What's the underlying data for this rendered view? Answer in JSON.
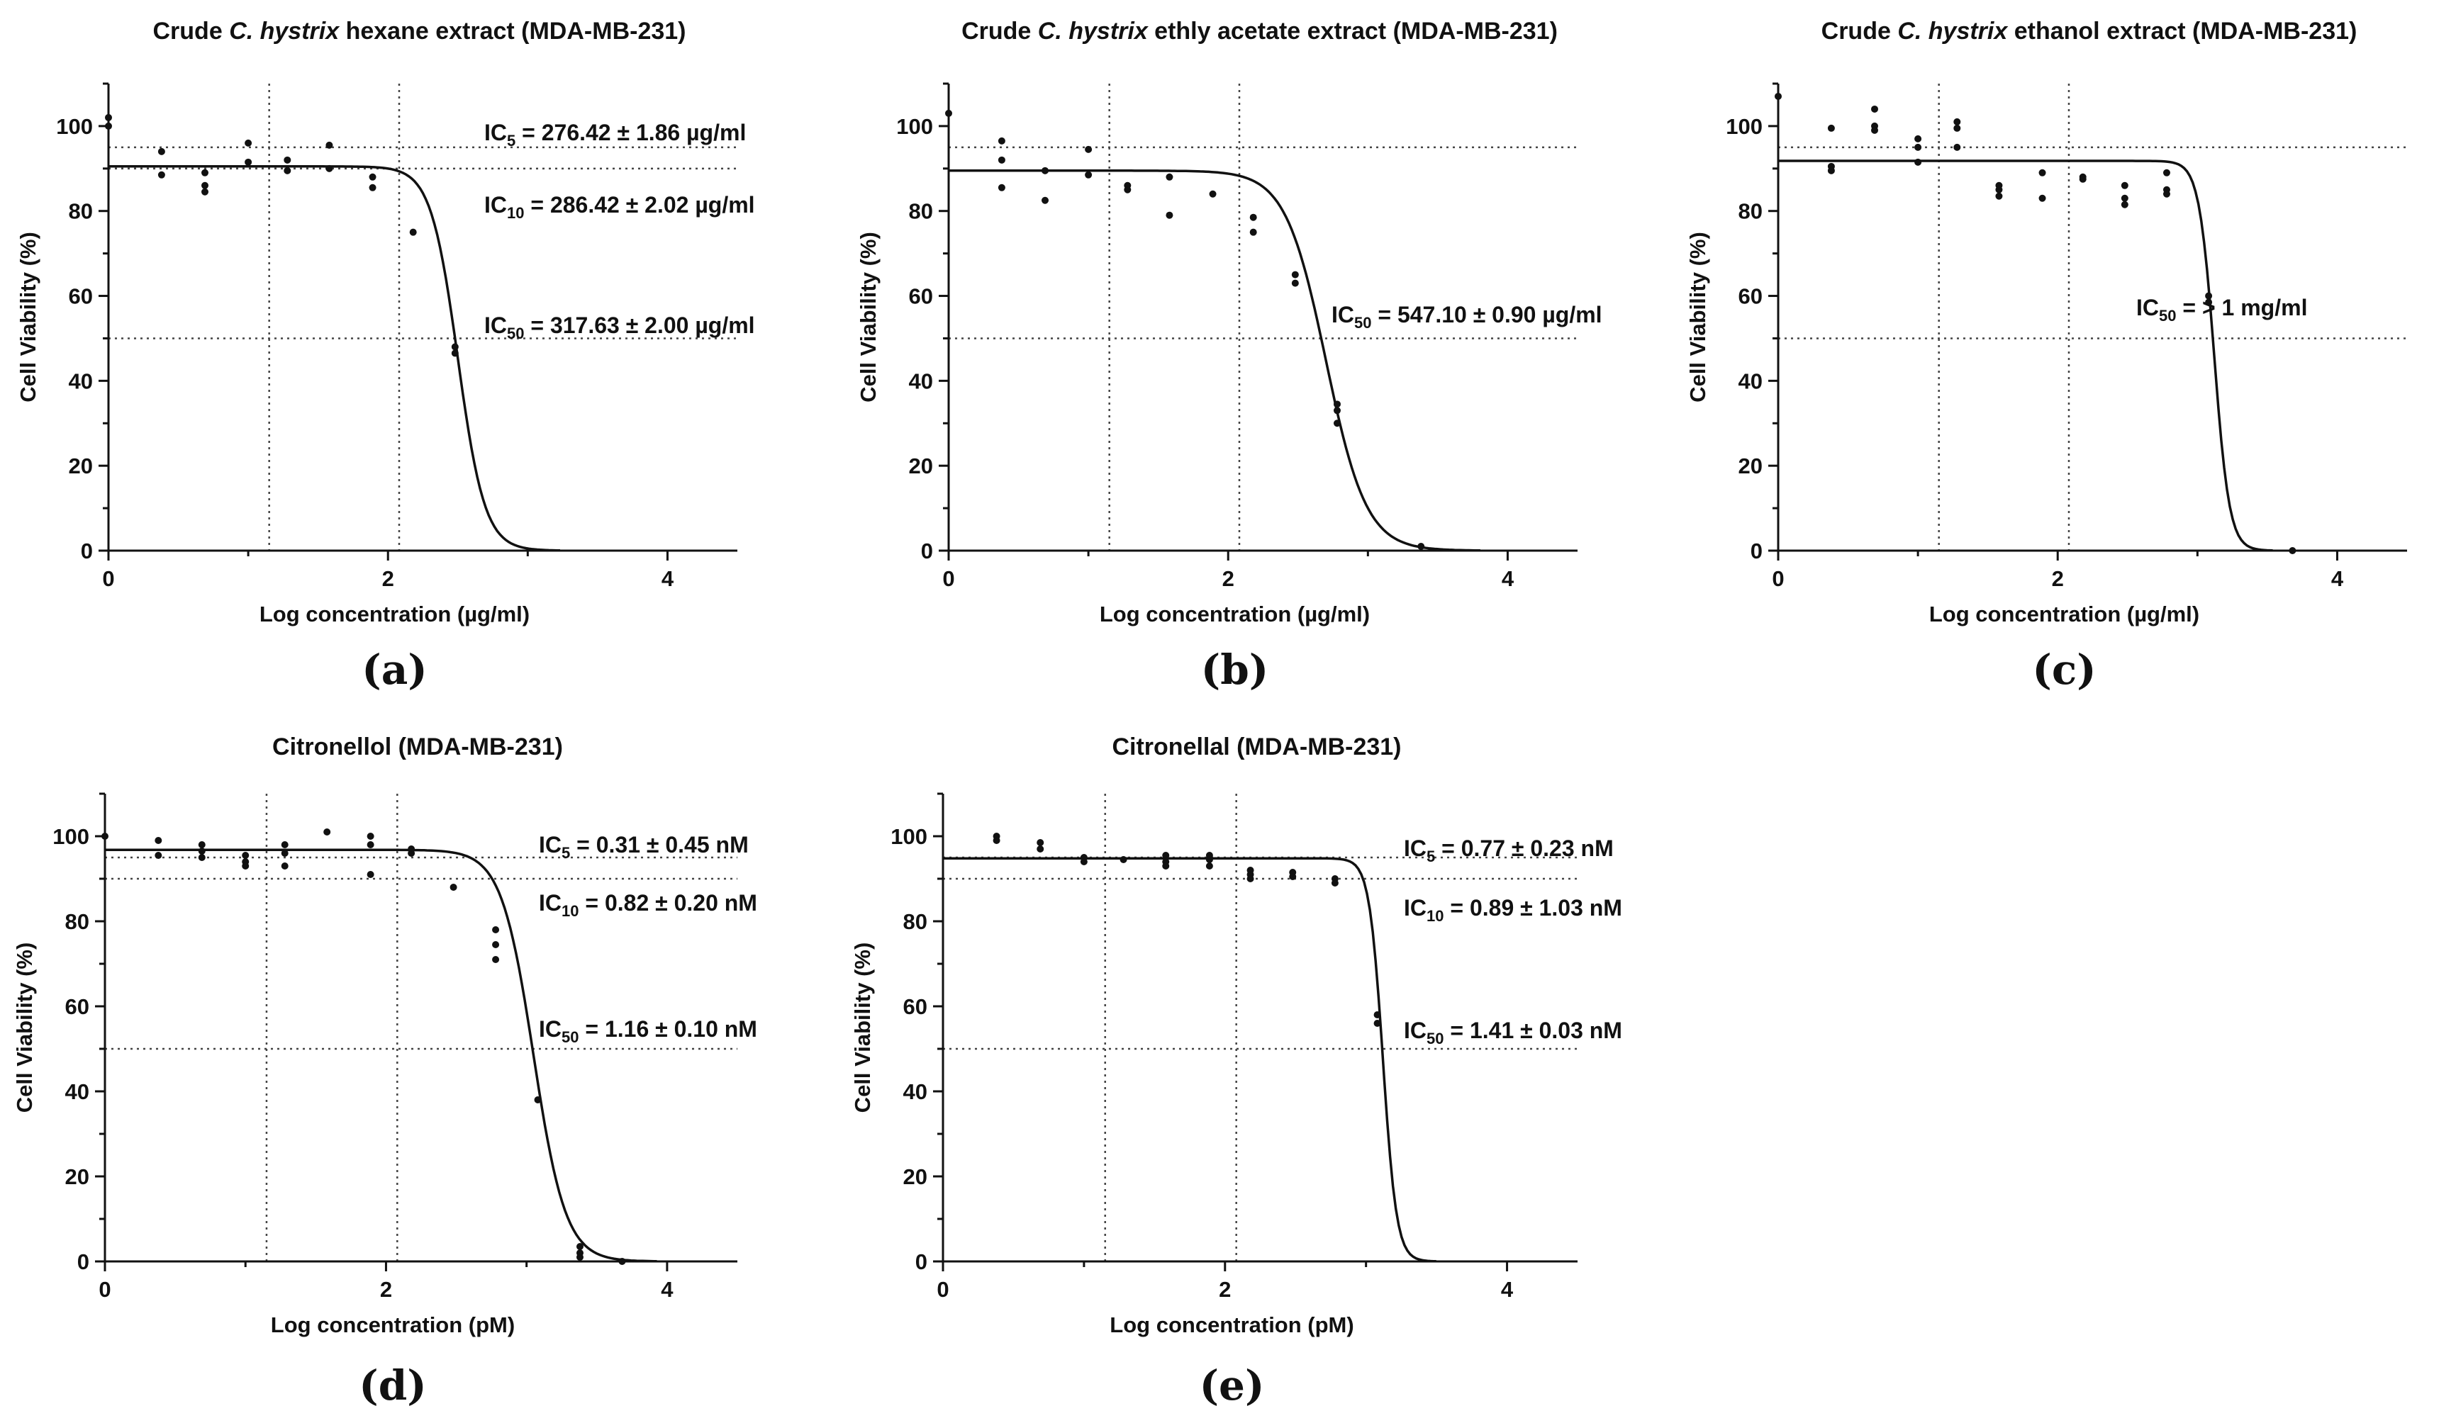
{
  "chart_data": [
    {
      "type": "scatter",
      "panel_label": "(a)",
      "title": {
        "before": "Crude ",
        "italic": "C. hystrix",
        "after": " hexane extract (MDA-MB-231)"
      },
      "xlabel": "Log concentration (µg/ml)",
      "ylabel": "Cell Viability (%)",
      "xlim": [
        0,
        4.5
      ],
      "ylim": [
        0,
        110
      ],
      "xticks": [
        "0",
        "2",
        "4"
      ],
      "yticks": [
        "0",
        "20",
        "40",
        "60",
        "80",
        "100"
      ],
      "xtick_values": [
        0,
        2,
        4
      ],
      "ytick_values": [
        0,
        20,
        40,
        60,
        80,
        100
      ],
      "vlines": [
        1.15,
        2.08
      ],
      "hlines": [
        95,
        90,
        50
      ],
      "fit": {
        "top": 90.5,
        "bottom": 0,
        "logIC50": 2.5,
        "hill": 4.5
      },
      "points": [
        {
          "x": 0,
          "y": 100
        },
        {
          "x": 0,
          "y": 102
        },
        {
          "x": 0.38,
          "y": 94
        },
        {
          "x": 0.38,
          "y": 88.5
        },
        {
          "x": 0.69,
          "y": 89
        },
        {
          "x": 0.69,
          "y": 86
        },
        {
          "x": 0.69,
          "y": 84.5
        },
        {
          "x": 1.0,
          "y": 96
        },
        {
          "x": 1.0,
          "y": 91.5
        },
        {
          "x": 1.28,
          "y": 92
        },
        {
          "x": 1.28,
          "y": 89.5
        },
        {
          "x": 1.58,
          "y": 95.5
        },
        {
          "x": 1.58,
          "y": 90
        },
        {
          "x": 1.89,
          "y": 88
        },
        {
          "x": 1.89,
          "y": 85.5
        },
        {
          "x": 2.18,
          "y": 75
        },
        {
          "x": 2.48,
          "y": 48
        },
        {
          "x": 2.48,
          "y": 46.5
        }
      ],
      "annotations": [
        {
          "pre": "IC",
          "sub": "5",
          "post": " = 276.42 ± 1.86 µg/ml"
        },
        {
          "pre": "IC",
          "sub": "10",
          "post": " = 286.42 ± 2.02 µg/ml"
        },
        {
          "pre": "IC",
          "sub": "50",
          "post": " = 317.63 ± 2.00 µg/ml"
        }
      ]
    },
    {
      "type": "scatter",
      "panel_label": "(b)",
      "title": {
        "before": "Crude ",
        "italic": "C. hystrix",
        "after": " ethly acetate extract (MDA-MB-231)"
      },
      "xlabel": "Log concentration (µg/ml)",
      "ylabel": "Cell Viability (%)",
      "xlim": [
        0,
        4.5
      ],
      "ylim": [
        0,
        110
      ],
      "xticks": [
        "0",
        "2",
        "4"
      ],
      "yticks": [
        "0",
        "20",
        "40",
        "60",
        "80",
        "100"
      ],
      "xtick_values": [
        0,
        2,
        4
      ],
      "ytick_values": [
        0,
        20,
        40,
        60,
        80,
        100
      ],
      "vlines": [
        1.15,
        2.08
      ],
      "hlines": [
        95,
        50
      ],
      "fit": {
        "top": 89.5,
        "bottom": 0,
        "logIC50": 2.7,
        "hill": 3.0
      },
      "points": [
        {
          "x": 0,
          "y": 103
        },
        {
          "x": 0.38,
          "y": 96.5
        },
        {
          "x": 0.38,
          "y": 92
        },
        {
          "x": 0.38,
          "y": 85.5
        },
        {
          "x": 0.69,
          "y": 89.5
        },
        {
          "x": 0.69,
          "y": 82.5
        },
        {
          "x": 1.0,
          "y": 94.5
        },
        {
          "x": 1.0,
          "y": 88.5
        },
        {
          "x": 1.28,
          "y": 86
        },
        {
          "x": 1.28,
          "y": 85
        },
        {
          "x": 1.58,
          "y": 88
        },
        {
          "x": 1.58,
          "y": 79
        },
        {
          "x": 1.89,
          "y": 84
        },
        {
          "x": 2.18,
          "y": 78.5
        },
        {
          "x": 2.18,
          "y": 75
        },
        {
          "x": 2.48,
          "y": 65
        },
        {
          "x": 2.48,
          "y": 63
        },
        {
          "x": 2.78,
          "y": 34.5
        },
        {
          "x": 2.78,
          "y": 33
        },
        {
          "x": 2.78,
          "y": 30
        },
        {
          "x": 3.38,
          "y": 1
        }
      ],
      "annotations": [
        {
          "pre": "IC",
          "sub": "50",
          "post": " = 547.10 ± 0.90 µg/ml"
        }
      ]
    },
    {
      "type": "scatter",
      "panel_label": "(c)",
      "title": {
        "before": "Crude ",
        "italic": "C. hystrix",
        "after": " ethanol extract (MDA-MB-231)"
      },
      "xlabel": "Log concentration (µg/ml)",
      "ylabel": "Cell Viability (%)",
      "xlim": [
        0,
        4.5
      ],
      "ylim": [
        0,
        110
      ],
      "xticks": [
        "0",
        "2",
        "4"
      ],
      "yticks": [
        "0",
        "20",
        "40",
        "60",
        "80",
        "100"
      ],
      "xtick_values": [
        0,
        2,
        4
      ],
      "ytick_values": [
        0,
        20,
        40,
        60,
        80,
        100
      ],
      "vlines": [
        1.15,
        2.08
      ],
      "hlines": [
        95,
        50
      ],
      "fit": {
        "top": 91.8,
        "bottom": 0,
        "logIC50": 3.12,
        "hill": 8.0
      },
      "points": [
        {
          "x": 0,
          "y": 107
        },
        {
          "x": 0.38,
          "y": 99.5
        },
        {
          "x": 0.38,
          "y": 90.5
        },
        {
          "x": 0.38,
          "y": 89.5
        },
        {
          "x": 0.69,
          "y": 104
        },
        {
          "x": 0.69,
          "y": 100
        },
        {
          "x": 0.69,
          "y": 99
        },
        {
          "x": 1.0,
          "y": 97
        },
        {
          "x": 1.0,
          "y": 95
        },
        {
          "x": 1.0,
          "y": 91.5
        },
        {
          "x": 1.28,
          "y": 101
        },
        {
          "x": 1.28,
          "y": 99.5
        },
        {
          "x": 1.28,
          "y": 95
        },
        {
          "x": 1.58,
          "y": 86
        },
        {
          "x": 1.58,
          "y": 85
        },
        {
          "x": 1.58,
          "y": 83.5
        },
        {
          "x": 1.89,
          "y": 89
        },
        {
          "x": 1.89,
          "y": 83
        },
        {
          "x": 2.18,
          "y": 88
        },
        {
          "x": 2.18,
          "y": 87.5
        },
        {
          "x": 2.48,
          "y": 86
        },
        {
          "x": 2.48,
          "y": 83
        },
        {
          "x": 2.48,
          "y": 81.5
        },
        {
          "x": 2.78,
          "y": 89
        },
        {
          "x": 2.78,
          "y": 85
        },
        {
          "x": 2.78,
          "y": 84
        },
        {
          "x": 3.08,
          "y": 60
        },
        {
          "x": 3.08,
          "y": 58.5
        },
        {
          "x": 3.68,
          "y": 0
        }
      ],
      "annotations": [
        {
          "pre": "IC",
          "sub": "50",
          "post": " = > 1 mg/ml"
        }
      ]
    },
    {
      "type": "scatter",
      "panel_label": "(d)",
      "title": {
        "before": "Citronellol (MDA-MB-231)",
        "italic": "",
        "after": ""
      },
      "xlabel": "Log concentration (pM)",
      "ylabel": "Cell Viability (%)",
      "xlim": [
        0,
        4.5
      ],
      "ylim": [
        0,
        110
      ],
      "xticks": [
        "0",
        "2",
        "4"
      ],
      "yticks": [
        "0",
        "20",
        "40",
        "60",
        "80",
        "100"
      ],
      "xtick_values": [
        0,
        2,
        4
      ],
      "ytick_values": [
        0,
        20,
        40,
        60,
        80,
        100
      ],
      "vlines": [
        1.15,
        2.08
      ],
      "hlines": [
        95,
        90,
        50
      ],
      "fit": {
        "top": 96.8,
        "bottom": 0,
        "logIC50": 3.05,
        "hill": 3.8
      },
      "points": [
        {
          "x": 0,
          "y": 100
        },
        {
          "x": 0.38,
          "y": 99
        },
        {
          "x": 0.38,
          "y": 95.5
        },
        {
          "x": 0.69,
          "y": 98
        },
        {
          "x": 0.69,
          "y": 96.5
        },
        {
          "x": 0.69,
          "y": 95
        },
        {
          "x": 1.0,
          "y": 95.5
        },
        {
          "x": 1.0,
          "y": 94
        },
        {
          "x": 1.0,
          "y": 93
        },
        {
          "x": 1.28,
          "y": 98
        },
        {
          "x": 1.28,
          "y": 96
        },
        {
          "x": 1.28,
          "y": 93
        },
        {
          "x": 1.58,
          "y": 101
        },
        {
          "x": 1.89,
          "y": 100
        },
        {
          "x": 1.89,
          "y": 98
        },
        {
          "x": 1.89,
          "y": 91
        },
        {
          "x": 2.18,
          "y": 97
        },
        {
          "x": 2.18,
          "y": 96
        },
        {
          "x": 2.48,
          "y": 88
        },
        {
          "x": 2.78,
          "y": 78
        },
        {
          "x": 2.78,
          "y": 74.5
        },
        {
          "x": 2.78,
          "y": 71
        },
        {
          "x": 3.08,
          "y": 38
        },
        {
          "x": 3.38,
          "y": 3.5
        },
        {
          "x": 3.38,
          "y": 2
        },
        {
          "x": 3.38,
          "y": 1
        },
        {
          "x": 3.68,
          "y": 0
        }
      ],
      "annotations": [
        {
          "pre": "IC",
          "sub": "5",
          "post": " = 0.31 ± 0.45 nM"
        },
        {
          "pre": "IC",
          "sub": "10",
          "post": " = 0.82 ± 0.20 nM"
        },
        {
          "pre": "IC",
          "sub": "50",
          "post": " = 1.16 ± 0.10 nM"
        }
      ]
    },
    {
      "type": "scatter",
      "panel_label": "(e)",
      "title": {
        "before": "Citronellal (MDA-MB-231)",
        "italic": "",
        "after": ""
      },
      "xlabel": "Log concentration (pM)",
      "ylabel": "Cell Viability (%)",
      "xlim": [
        0,
        4.5
      ],
      "ylim": [
        0,
        110
      ],
      "xticks": [
        "0",
        "2",
        "4"
      ],
      "yticks": [
        "0",
        "20",
        "40",
        "60",
        "80",
        "100"
      ],
      "xtick_values": [
        0,
        2,
        4
      ],
      "ytick_values": [
        0,
        20,
        40,
        60,
        80,
        100
      ],
      "vlines": [
        1.15,
        2.08
      ],
      "hlines": [
        95,
        90,
        50
      ],
      "fit": {
        "top": 94.8,
        "bottom": 0,
        "logIC50": 3.12,
        "hill": 9.0
      },
      "points": [
        {
          "x": 0.38,
          "y": 100
        },
        {
          "x": 0.38,
          "y": 99
        },
        {
          "x": 0.69,
          "y": 98.5
        },
        {
          "x": 0.69,
          "y": 97
        },
        {
          "x": 1.0,
          "y": 95
        },
        {
          "x": 1.0,
          "y": 94
        },
        {
          "x": 1.28,
          "y": 94.5
        },
        {
          "x": 1.58,
          "y": 95.5
        },
        {
          "x": 1.58,
          "y": 94
        },
        {
          "x": 1.58,
          "y": 93
        },
        {
          "x": 1.89,
          "y": 95.5
        },
        {
          "x": 1.89,
          "y": 94.5
        },
        {
          "x": 1.89,
          "y": 93
        },
        {
          "x": 2.18,
          "y": 92
        },
        {
          "x": 2.18,
          "y": 91
        },
        {
          "x": 2.18,
          "y": 90
        },
        {
          "x": 2.48,
          "y": 91.5
        },
        {
          "x": 2.48,
          "y": 90.5
        },
        {
          "x": 2.78,
          "y": 90
        },
        {
          "x": 2.78,
          "y": 89
        },
        {
          "x": 3.08,
          "y": 58
        },
        {
          "x": 3.08,
          "y": 56
        }
      ],
      "annotations": [
        {
          "pre": "IC",
          "sub": "5",
          "post": " = 0.77 ± 0.23 nM"
        },
        {
          "pre": "IC",
          "sub": "10",
          "post": " = 0.89 ± 1.03 nM"
        },
        {
          "pre": "IC",
          "sub": "50",
          "post": " = 1.41 ± 0.03 nM"
        }
      ]
    }
  ]
}
